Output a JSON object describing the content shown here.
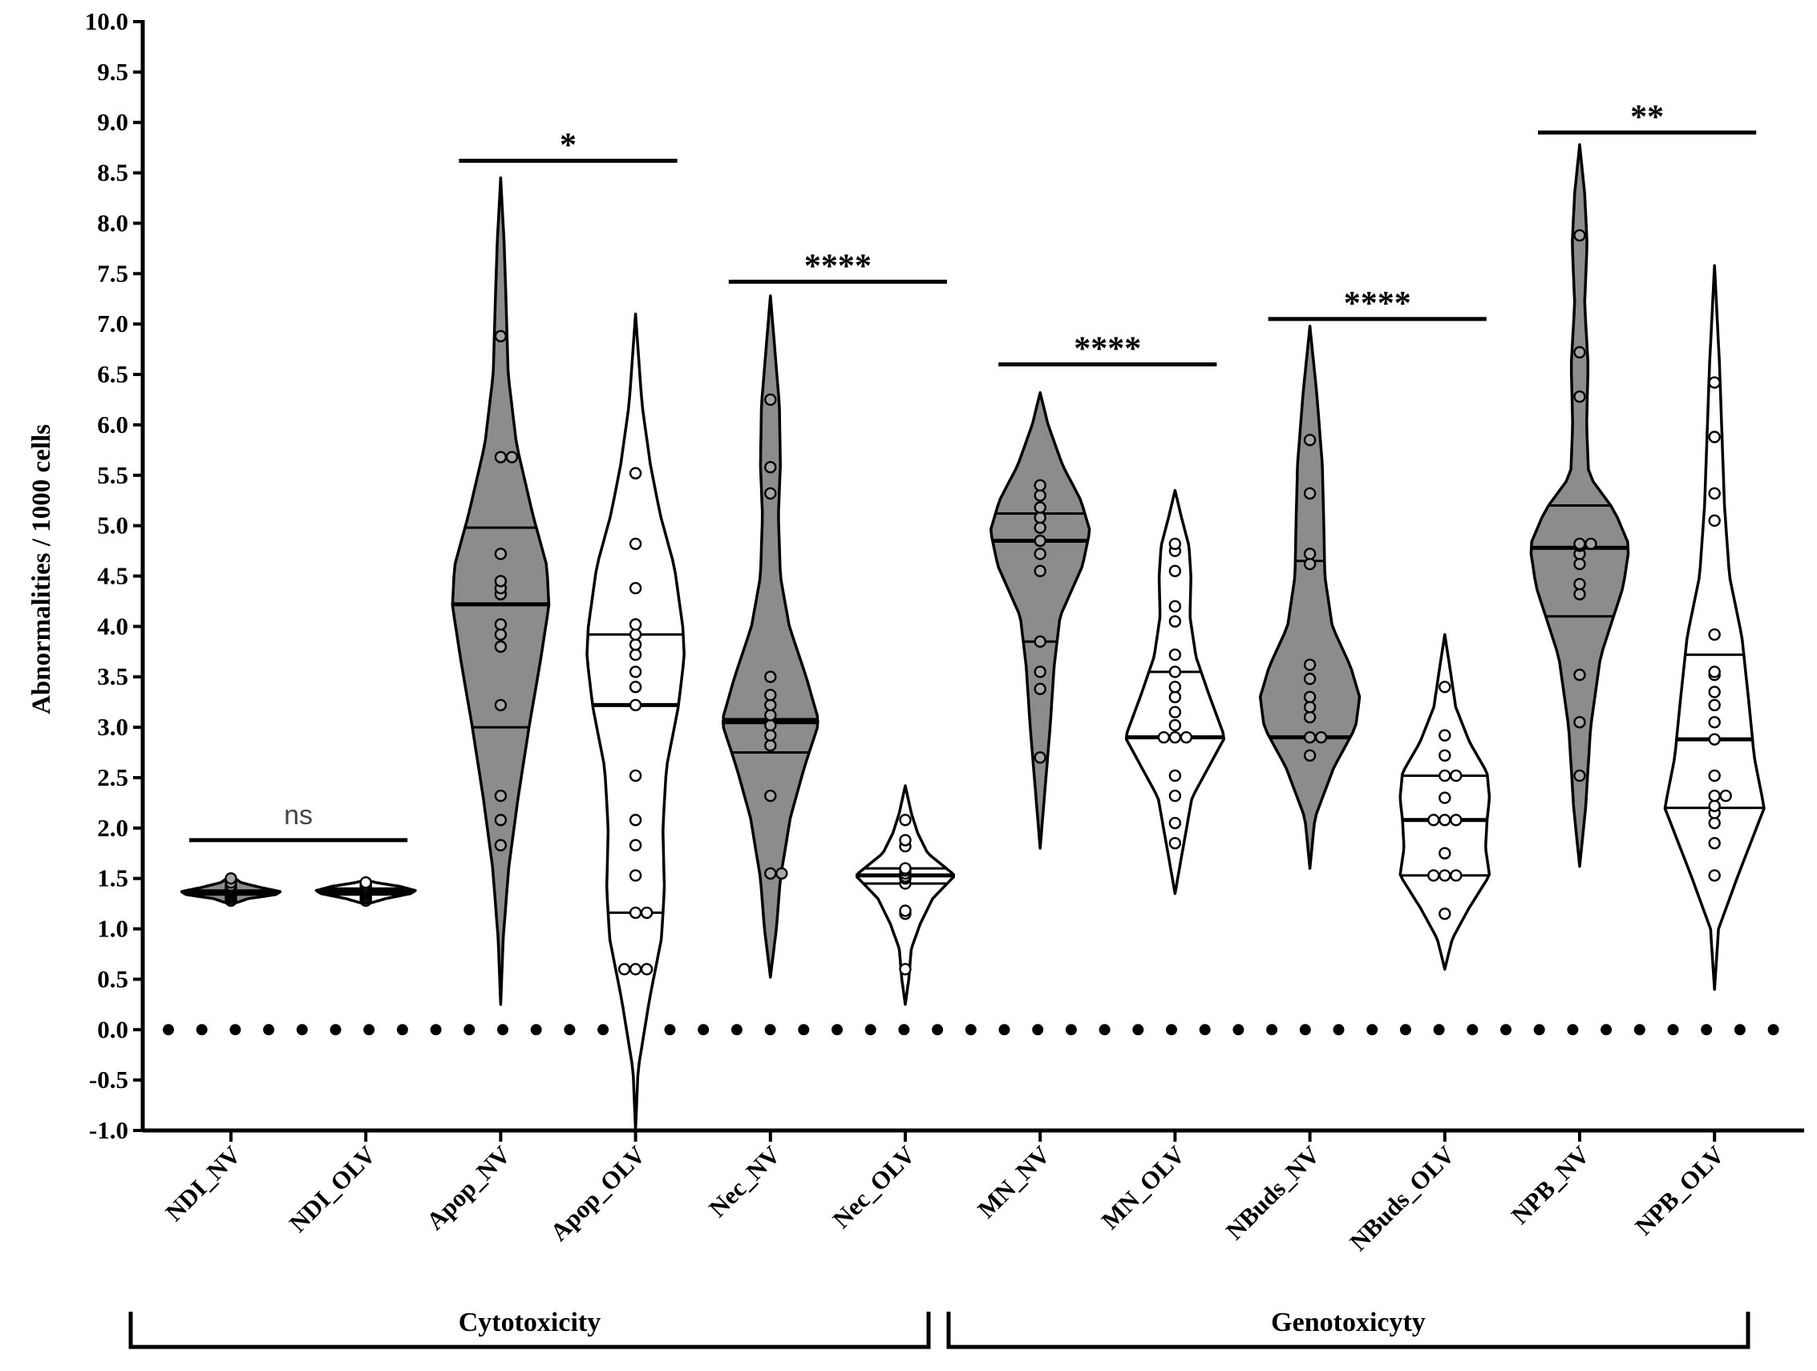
{
  "chart_data": {
    "type": "violin",
    "ylabel": "Abnormalities / 1000 cells",
    "xlabel": "",
    "ylim": [
      -1.0,
      10.0
    ],
    "yticks": [
      "-1.0",
      "-0.5",
      "0.0",
      "0.5",
      "1.0",
      "1.5",
      "2.0",
      "2.5",
      "3.0",
      "3.5",
      "4.0",
      "4.5",
      "5.0",
      "5.5",
      "6.0",
      "6.5",
      "7.0",
      "7.5",
      "8.0",
      "8.5",
      "9.0",
      "9.5",
      "10.0"
    ],
    "reference_line": 0.0,
    "colors": {
      "gray_fill": "#8c8c8c",
      "white_fill": "#ffffff",
      "stroke": "#000000",
      "point_gray": "#a6a6a6"
    },
    "categories": [
      {
        "name": "NDI_NV",
        "fill": "gray",
        "min": 1.25,
        "max": 1.52,
        "median": 1.36,
        "q1": 1.34,
        "q3": 1.38,
        "shape": [
          [
            1.25,
            0.05
          ],
          [
            1.3,
            0.35
          ],
          [
            1.34,
            0.9
          ],
          [
            1.37,
            1.0
          ],
          [
            1.41,
            0.6
          ],
          [
            1.46,
            0.2
          ],
          [
            1.52,
            0.03
          ]
        ],
        "points": [
          1.28,
          1.3,
          1.32,
          1.33,
          1.35,
          1.36,
          1.37,
          1.38,
          1.39,
          1.41,
          1.43,
          1.46,
          1.5
        ]
      },
      {
        "name": "NDI_OLV",
        "fill": "white",
        "min": 1.25,
        "max": 1.48,
        "median": 1.37,
        "q1": 1.34,
        "q3": 1.4,
        "shape": [
          [
            1.25,
            0.05
          ],
          [
            1.3,
            0.4
          ],
          [
            1.35,
            0.9
          ],
          [
            1.38,
            1.0
          ],
          [
            1.42,
            0.7
          ],
          [
            1.46,
            0.2
          ],
          [
            1.48,
            0.03
          ]
        ],
        "points": [
          1.28,
          1.3,
          1.31,
          1.33,
          1.35,
          1.36,
          1.37,
          1.38,
          1.39,
          1.4,
          1.42,
          1.44,
          1.46
        ]
      },
      {
        "name": "Apop_NV",
        "fill": "gray",
        "min": 0.25,
        "max": 8.45,
        "median": 4.22,
        "q1": 3.0,
        "q3": 4.98,
        "shape": [
          [
            0.25,
            0.0
          ],
          [
            0.9,
            0.05
          ],
          [
            1.6,
            0.16
          ],
          [
            2.3,
            0.35
          ],
          [
            3.0,
            0.57
          ],
          [
            3.6,
            0.78
          ],
          [
            4.2,
            0.97
          ],
          [
            4.6,
            0.93
          ],
          [
            5.1,
            0.65
          ],
          [
            5.8,
            0.32
          ],
          [
            6.5,
            0.15
          ],
          [
            7.2,
            0.11
          ],
          [
            7.8,
            0.07
          ],
          [
            8.45,
            0.0
          ]
        ],
        "points": [
          1.83,
          2.08,
          2.32,
          3.22,
          3.8,
          3.92,
          4.02,
          4.32,
          4.38,
          4.45,
          4.72,
          5.68,
          5.68,
          6.88
        ]
      },
      {
        "name": "Apop_OLV",
        "fill": "white",
        "min": -1.0,
        "max": 7.1,
        "median": 3.22,
        "q1": 1.16,
        "q3": 3.92,
        "shape": [
          [
            -1.0,
            0.0
          ],
          [
            -0.4,
            0.05
          ],
          [
            0.3,
            0.28
          ],
          [
            0.9,
            0.52
          ],
          [
            1.4,
            0.58
          ],
          [
            2.0,
            0.55
          ],
          [
            2.6,
            0.62
          ],
          [
            3.2,
            0.86
          ],
          [
            3.7,
            0.98
          ],
          [
            4.0,
            0.95
          ],
          [
            4.6,
            0.78
          ],
          [
            5.1,
            0.5
          ],
          [
            5.6,
            0.3
          ],
          [
            6.2,
            0.13
          ],
          [
            7.1,
            0.0
          ]
        ],
        "points": [
          0.6,
          0.6,
          0.6,
          1.16,
          1.16,
          1.53,
          1.83,
          2.08,
          2.52,
          3.22,
          3.4,
          3.55,
          3.72,
          3.82,
          3.92,
          4.02,
          4.38,
          4.82,
          5.52
        ]
      },
      {
        "name": "Nec_NV",
        "fill": "gray",
        "min": 0.52,
        "max": 7.28,
        "median": 3.05,
        "q1": 2.75,
        "q3": 3.08,
        "shape": [
          [
            0.52,
            0.0
          ],
          [
            1.0,
            0.12
          ],
          [
            1.5,
            0.2
          ],
          [
            2.1,
            0.4
          ],
          [
            2.6,
            0.68
          ],
          [
            3.05,
            0.98
          ],
          [
            3.5,
            0.72
          ],
          [
            4.0,
            0.38
          ],
          [
            4.5,
            0.2
          ],
          [
            5.1,
            0.16
          ],
          [
            5.6,
            0.2
          ],
          [
            6.2,
            0.18
          ],
          [
            6.8,
            0.08
          ],
          [
            7.28,
            0.0
          ]
        ],
        "points": [
          1.55,
          1.55,
          2.32,
          2.82,
          2.92,
          3.02,
          3.12,
          3.22,
          3.32,
          3.5,
          5.32,
          5.58,
          6.25
        ]
      },
      {
        "name": "Nec_OLV",
        "fill": "white",
        "min": 0.25,
        "max": 2.42,
        "median": 1.53,
        "q1": 1.45,
        "q3": 1.6,
        "shape": [
          [
            0.25,
            0.0
          ],
          [
            0.5,
            0.07
          ],
          [
            0.8,
            0.12
          ],
          [
            1.05,
            0.3
          ],
          [
            1.3,
            0.55
          ],
          [
            1.53,
            1.0
          ],
          [
            1.75,
            0.45
          ],
          [
            1.95,
            0.25
          ],
          [
            2.15,
            0.12
          ],
          [
            2.42,
            0.0
          ]
        ],
        "points": [
          0.6,
          1.15,
          1.18,
          1.45,
          1.5,
          1.52,
          1.55,
          1.58,
          1.6,
          1.82,
          1.88,
          2.08
        ]
      },
      {
        "name": "MN_NV",
        "fill": "gray",
        "min": 1.8,
        "max": 6.32,
        "median": 4.85,
        "q1": 3.85,
        "q3": 5.12,
        "shape": [
          [
            1.8,
            0.0
          ],
          [
            2.4,
            0.1
          ],
          [
            3.0,
            0.2
          ],
          [
            3.6,
            0.28
          ],
          [
            4.1,
            0.4
          ],
          [
            4.6,
            0.85
          ],
          [
            4.95,
            1.0
          ],
          [
            5.25,
            0.82
          ],
          [
            5.6,
            0.45
          ],
          [
            6.0,
            0.16
          ],
          [
            6.32,
            0.0
          ]
        ],
        "points": [
          2.7,
          3.38,
          3.55,
          3.85,
          4.55,
          4.72,
          4.85,
          4.98,
          5.08,
          5.18,
          5.3,
          5.4
        ]
      },
      {
        "name": "MN_OLV",
        "fill": "white",
        "min": 1.35,
        "max": 5.35,
        "median": 2.9,
        "q1": 2.9,
        "q3": 3.55,
        "shape": [
          [
            1.35,
            0.0
          ],
          [
            1.8,
            0.16
          ],
          [
            2.3,
            0.34
          ],
          [
            2.9,
            1.0
          ],
          [
            3.3,
            0.7
          ],
          [
            3.7,
            0.42
          ],
          [
            4.1,
            0.3
          ],
          [
            4.5,
            0.32
          ],
          [
            4.8,
            0.28
          ],
          [
            5.1,
            0.12
          ],
          [
            5.35,
            0.0
          ]
        ],
        "points": [
          1.85,
          2.05,
          2.32,
          2.52,
          2.9,
          2.9,
          2.9,
          3.02,
          3.15,
          3.3,
          3.4,
          3.55,
          3.72,
          4.05,
          4.2,
          4.55,
          4.75,
          4.82
        ]
      },
      {
        "name": "NBuds_NV",
        "fill": "gray",
        "min": 1.6,
        "max": 6.98,
        "median": 2.9,
        "q1": 2.9,
        "q3": 4.65,
        "shape": [
          [
            1.6,
            0.0
          ],
          [
            2.1,
            0.1
          ],
          [
            2.6,
            0.48
          ],
          [
            3.0,
            0.92
          ],
          [
            3.3,
            1.0
          ],
          [
            3.6,
            0.82
          ],
          [
            4.0,
            0.45
          ],
          [
            4.5,
            0.3
          ],
          [
            5.0,
            0.28
          ],
          [
            5.6,
            0.25
          ],
          [
            6.3,
            0.14
          ],
          [
            6.98,
            0.0
          ]
        ],
        "points": [
          2.72,
          2.9,
          2.9,
          3.1,
          3.2,
          3.3,
          3.48,
          3.62,
          4.62,
          4.72,
          5.32,
          5.85
        ]
      },
      {
        "name": "NBuds_OLV",
        "fill": "white",
        "min": 0.6,
        "max": 3.92,
        "median": 2.08,
        "q1": 1.53,
        "q3": 2.52,
        "shape": [
          [
            0.6,
            0.0
          ],
          [
            0.9,
            0.15
          ],
          [
            1.2,
            0.48
          ],
          [
            1.53,
            0.9
          ],
          [
            1.8,
            0.82
          ],
          [
            2.08,
            0.85
          ],
          [
            2.3,
            0.9
          ],
          [
            2.55,
            0.85
          ],
          [
            2.85,
            0.5
          ],
          [
            3.2,
            0.22
          ],
          [
            3.6,
            0.1
          ],
          [
            3.92,
            0.0
          ]
        ],
        "points": [
          1.15,
          1.53,
          1.53,
          1.53,
          1.75,
          2.08,
          2.08,
          2.08,
          2.3,
          2.52,
          2.52,
          2.72,
          2.92,
          3.4
        ]
      },
      {
        "name": "NPB_NV",
        "fill": "gray",
        "min": 1.62,
        "max": 8.78,
        "median": 4.78,
        "q1": 4.1,
        "q3": 5.2,
        "shape": [
          [
            1.62,
            0.0
          ],
          [
            2.2,
            0.12
          ],
          [
            3.0,
            0.22
          ],
          [
            3.7,
            0.42
          ],
          [
            4.4,
            0.88
          ],
          [
            4.8,
            1.0
          ],
          [
            5.15,
            0.7
          ],
          [
            5.5,
            0.18
          ],
          [
            6.0,
            0.14
          ],
          [
            6.6,
            0.17
          ],
          [
            7.2,
            0.1
          ],
          [
            7.8,
            0.15
          ],
          [
            8.3,
            0.1
          ],
          [
            8.78,
            0.0
          ]
        ],
        "points": [
          2.52,
          3.05,
          3.52,
          4.32,
          4.42,
          4.62,
          4.72,
          4.8,
          4.82,
          4.82,
          6.28,
          6.72,
          7.88
        ]
      },
      {
        "name": "NPB_OLV",
        "fill": "white",
        "min": 0.4,
        "max": 7.58,
        "median": 2.88,
        "q1": 2.2,
        "q3": 3.72,
        "shape": [
          [
            0.4,
            0.0
          ],
          [
            1.0,
            0.08
          ],
          [
            1.5,
            0.45
          ],
          [
            2.2,
            1.0
          ],
          [
            2.7,
            0.8
          ],
          [
            3.3,
            0.68
          ],
          [
            3.9,
            0.55
          ],
          [
            4.5,
            0.3
          ],
          [
            5.2,
            0.2
          ],
          [
            5.9,
            0.15
          ],
          [
            6.6,
            0.1
          ],
          [
            7.58,
            0.0
          ]
        ],
        "points": [
          1.53,
          1.85,
          2.05,
          2.15,
          2.22,
          2.32,
          2.32,
          2.52,
          2.88,
          3.05,
          3.22,
          3.35,
          3.52,
          3.55,
          3.92,
          5.05,
          5.32,
          5.88,
          6.42
        ]
      }
    ],
    "significance": [
      {
        "label": "ns",
        "from": 0,
        "to": 1,
        "y": 1.88
      },
      {
        "label": "*",
        "from": 2,
        "to": 3,
        "y": 8.62
      },
      {
        "label": "****",
        "from": 4,
        "to": 5,
        "y": 7.42
      },
      {
        "label": "****",
        "from": 6,
        "to": 7,
        "y": 6.6
      },
      {
        "label": "****",
        "from": 8,
        "to": 9,
        "y": 7.05
      },
      {
        "label": "**",
        "from": 10,
        "to": 11,
        "y": 8.9
      }
    ],
    "groups": [
      {
        "label": "Cytotoxicity",
        "from": 0,
        "to": 5
      },
      {
        "label": "Genotoxicyty",
        "from": 6,
        "to": 11
      }
    ]
  }
}
